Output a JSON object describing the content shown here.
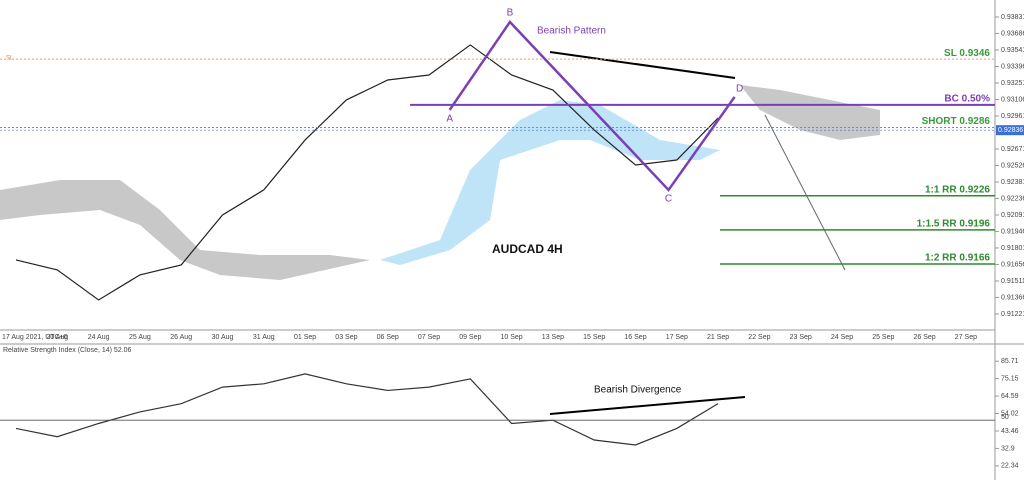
{
  "chart_data": [
    {
      "type": "line",
      "title": "AUDCAD 4H",
      "categories": [
        "17 Aug 2021, UTC+0",
        "20 Aug",
        "24 Aug",
        "25 Aug",
        "26 Aug",
        "30 Aug",
        "31 Aug",
        "01 Sep",
        "03 Sep",
        "06 Sep",
        "07 Sep",
        "09 Sep",
        "10 Sep",
        "13 Sep",
        "15 Sep",
        "16 Sep",
        "17 Sep",
        "21 Sep",
        "22 Sep",
        "23 Sep",
        "24 Sep",
        "25 Sep",
        "26 Sep",
        "27 Sep"
      ],
      "values": [
        0.91696,
        0.91608,
        0.91344,
        0.91564,
        0.91652,
        0.92091,
        0.92311,
        0.9275,
        0.93102,
        0.93277,
        0.93321,
        0.93585,
        0.93321,
        0.93189,
        0.92838,
        0.9253,
        0.92574,
        0.92943,
        null,
        null,
        null,
        null,
        null,
        null
      ],
      "color": "#222222",
      "ylim": [
        0.9108,
        0.9398
      ],
      "yticks": [
        0.93831,
        0.93686,
        0.93541,
        0.93396,
        0.93251,
        0.93106,
        0.92961,
        0.92671,
        0.92526,
        0.92381,
        0.92236,
        0.92091,
        0.91946,
        0.91801,
        0.91656,
        0.91511,
        0.91366,
        0.91221
      ],
      "current_price": 0.92836,
      "pattern": {
        "title": "Bearish Pattern",
        "color": "#7b3fb5",
        "points": [
          {
            "label": "A",
            "x": 10.5,
            "y": 0.93014
          },
          {
            "label": "B",
            "x": 11.96,
            "y": 0.93787
          },
          {
            "label": "C",
            "x": 15.8,
            "y": 0.92311
          },
          {
            "label": "D",
            "x": 17.4,
            "y": 0.93128
          }
        ]
      },
      "levels": [
        {
          "label": "SL 0.9346",
          "value": 0.9346,
          "color": "#3a9a3a"
        },
        {
          "label": "BC 0.50%",
          "value": 0.93058,
          "color": "#7b3fb5"
        },
        {
          "label": "SHORT 0.9286",
          "value": 0.9286,
          "color": "#3a9a3a"
        },
        {
          "label": "1:1 RR 0.9226",
          "value": 0.9226,
          "color": "#2e8b2e"
        },
        {
          "label": "1:1.5 RR 0.9196",
          "value": 0.9196,
          "color": "#2e8b2e"
        },
        {
          "label": "1:2 RR 0.9166",
          "value": 0.9166,
          "color": "#2e8b2e"
        }
      ],
      "sl_tag": "SL"
    },
    {
      "type": "line",
      "title": "Relative Strength Index (Close, 14) 52.06",
      "values": [
        45,
        40,
        48,
        55,
        60,
        70,
        72,
        78,
        72,
        68,
        70,
        75,
        48,
        50,
        38,
        35,
        45,
        60,
        null,
        null,
        null,
        null,
        null,
        null
      ],
      "color": "#333333",
      "ylim": [
        13.8,
        96.1
      ],
      "yticks": [
        85.71,
        75.15,
        64.59,
        54.02,
        43.46,
        32.9,
        22.34
      ],
      "reference_line": 50,
      "annotation": "Bearish Divergence"
    }
  ]
}
